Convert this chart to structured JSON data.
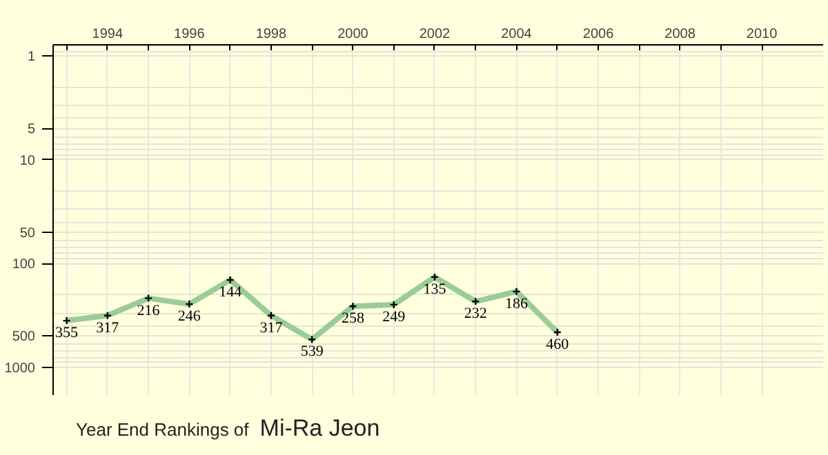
{
  "chart_data": {
    "type": "line",
    "title": "Year End Rankings of",
    "subtitle": "Mi-Ra Jeon",
    "x": [
      1993,
      1994,
      1995,
      1996,
      1997,
      1998,
      1999,
      2000,
      2001,
      2002,
      2003,
      2004,
      2005
    ],
    "series": [
      {
        "color": "#99cc99",
        "values": [
          355,
          317,
          216,
          246,
          144,
          317,
          539,
          258,
          249,
          135,
          232,
          186,
          460
        ]
      }
    ],
    "xlim": [
      1992.67,
      2011.5
    ],
    "xticks": [
      {
        "value": 1993,
        "label": null
      },
      1994,
      {
        "value": 1995,
        "label": null
      },
      1996,
      {
        "value": 1997,
        "label": null
      },
      1998,
      {
        "value": 1999,
        "label": null
      },
      2000,
      {
        "value": 2001,
        "label": null
      },
      2002,
      {
        "value": 2003,
        "label": null
      },
      2004,
      {
        "value": 2005,
        "label": null
      },
      2006,
      {
        "value": 2007,
        "label": null
      },
      2008,
      {
        "value": 2009,
        "label": null
      },
      2010
    ],
    "ylim": [
      1850,
      0.78
    ],
    "yticks": [
      1,
      5,
      10,
      50,
      100,
      500,
      1000
    ],
    "log": "y",
    "grid": true,
    "data_labels": true,
    "marker": "cross",
    "line_style": "solid"
  }
}
